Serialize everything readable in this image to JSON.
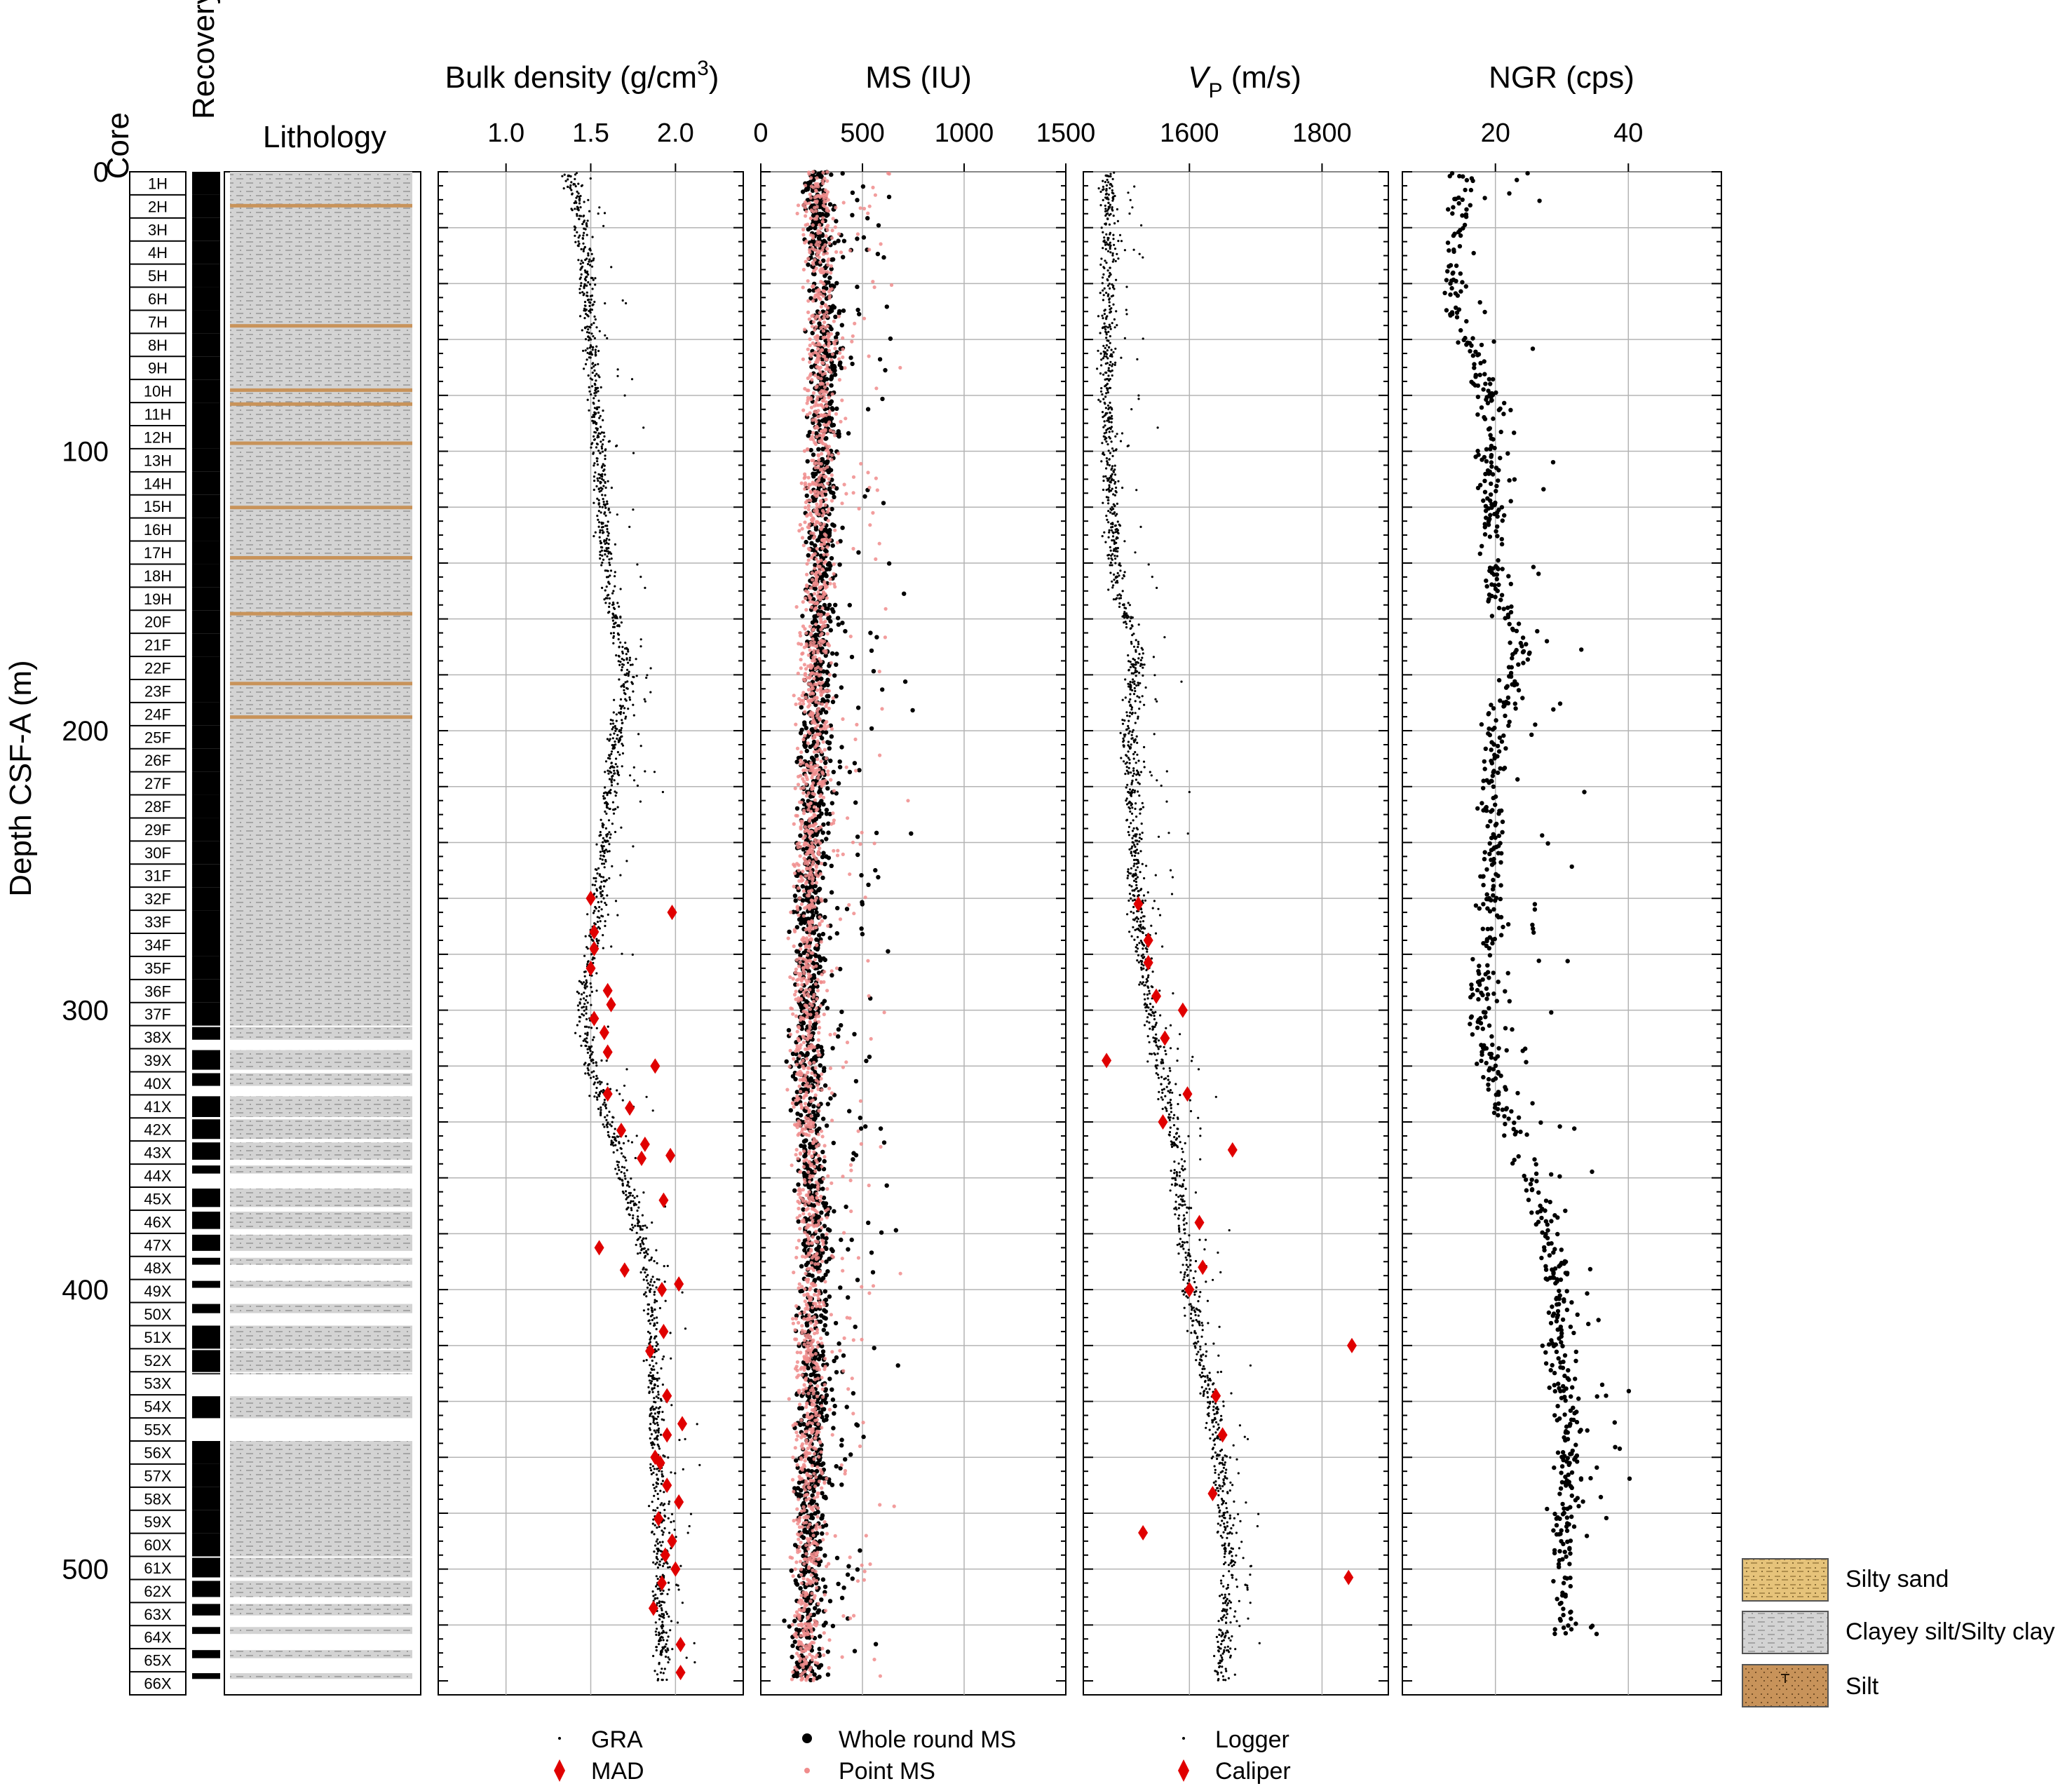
{
  "figure": {
    "y_axis_label": "Depth CSF-A (m)",
    "depth_ticks": [
      "0",
      "100",
      "200",
      "300",
      "400",
      "500"
    ],
    "column_headers": {
      "core": "Core",
      "recovery": "Recovery",
      "lithology": "Lithology"
    }
  },
  "colors": {
    "black": "#000000",
    "red": "#e00000",
    "pink": "#f08c8c",
    "grid": "#b4b4b4",
    "clay_fill": "#d3d3d3",
    "sand_fill": "#e6c37a",
    "silt_fill": "#c8935a"
  },
  "legend_lithology": [
    {
      "label": "Silty sand",
      "pattern": "silty-sand"
    },
    {
      "label": "Clayey silt/Silty clay",
      "pattern": "clayey-silt"
    },
    {
      "label": "Silt",
      "pattern": "silt"
    }
  ],
  "cores": [
    "1H",
    "2H",
    "3H",
    "4H",
    "5H",
    "6H",
    "7H",
    "8H",
    "9H",
    "10H",
    "11H",
    "12H",
    "13H",
    "14H",
    "15H",
    "16H",
    "17H",
    "18H",
    "19H",
    "20F",
    "21F",
    "22F",
    "23F",
    "24F",
    "25F",
    "26F",
    "27F",
    "28F",
    "29F",
    "30F",
    "31F",
    "32F",
    "33F",
    "34F",
    "35F",
    "36F",
    "37F",
    "38X",
    "39X",
    "40X",
    "41X",
    "42X",
    "43X",
    "44X",
    "45X",
    "46X",
    "47X",
    "48X",
    "49X",
    "50X",
    "51X",
    "52X",
    "53X",
    "54X",
    "55X",
    "56X",
    "57X",
    "58X",
    "59X",
    "60X",
    "61X",
    "62X",
    "63X",
    "64X",
    "65X",
    "66X"
  ],
  "chart_data": [
    {
      "type": "scatter",
      "title": "Bulk density (g/cm3)",
      "title_main": "Bulk density (g/cm",
      "title_sup": "3",
      "title_tail": ")",
      "xlim": [
        0.6,
        2.4
      ],
      "x_ticks": [
        "1.0",
        "1.5",
        "2.0"
      ],
      "ylim": [
        0,
        545
      ],
      "y_inverted": true,
      "legend": [
        "GRA",
        "MAD"
      ],
      "series": [
        {
          "name": "GRA",
          "marker": "small-dot",
          "profile": [
            [
              0,
              1.38
            ],
            [
              20,
              1.45
            ],
            [
              60,
              1.5
            ],
            [
              100,
              1.55
            ],
            [
              150,
              1.6
            ],
            [
              180,
              1.72
            ],
            [
              200,
              1.65
            ],
            [
              240,
              1.58
            ],
            [
              262,
              1.55
            ],
            [
              300,
              1.45
            ],
            [
              320,
              1.5
            ],
            [
              350,
              1.65
            ],
            [
              380,
              1.8
            ],
            [
              400,
              1.85
            ],
            [
              430,
              1.87
            ],
            [
              470,
              1.9
            ],
            [
              535,
              1.92
            ]
          ]
        },
        {
          "name": "MAD",
          "marker": "red-diamond",
          "points": [
            [
              260,
              1.5
            ],
            [
              265,
              1.98
            ],
            [
              272,
              1.52
            ],
            [
              278,
              1.52
            ],
            [
              285,
              1.5
            ],
            [
              293,
              1.6
            ],
            [
              298,
              1.62
            ],
            [
              303,
              1.52
            ],
            [
              308,
              1.58
            ],
            [
              315,
              1.6
            ],
            [
              320,
              1.88
            ],
            [
              330,
              1.6
            ],
            [
              335,
              1.73
            ],
            [
              343,
              1.68
            ],
            [
              348,
              1.82
            ],
            [
              353,
              1.8
            ],
            [
              352,
              1.97
            ],
            [
              368,
              1.93
            ],
            [
              385,
              1.55
            ],
            [
              393,
              1.7
            ],
            [
              400,
              1.92
            ],
            [
              398,
              2.02
            ],
            [
              415,
              1.93
            ],
            [
              422,
              1.85
            ],
            [
              438,
              1.95
            ],
            [
              448,
              2.04
            ],
            [
              452,
              1.95
            ],
            [
              460,
              1.88
            ],
            [
              462,
              1.91
            ],
            [
              470,
              1.95
            ],
            [
              476,
              2.02
            ],
            [
              482,
              1.9
            ],
            [
              490,
              1.98
            ],
            [
              495,
              1.94
            ],
            [
              500,
              2.0
            ],
            [
              505,
              1.92
            ],
            [
              514,
              1.87
            ],
            [
              527,
              2.03
            ],
            [
              537,
              2.03
            ]
          ]
        }
      ]
    },
    {
      "type": "scatter",
      "title": "MS (IU)",
      "xlim": [
        0,
        1500
      ],
      "x_ticks": [
        "0",
        "500",
        "1000",
        "1500"
      ],
      "ylim": [
        0,
        545
      ],
      "y_inverted": true,
      "legend": [
        "Whole round MS",
        "Point MS"
      ],
      "series": [
        {
          "name": "Whole round MS",
          "marker": "black-dot",
          "profile": [
            [
              0,
              280
            ],
            [
              60,
              320
            ],
            [
              120,
              300
            ],
            [
              200,
              280
            ],
            [
              262,
              240
            ],
            [
              320,
              230
            ],
            [
              380,
              260
            ],
            [
              420,
              260
            ],
            [
              480,
              250
            ],
            [
              535,
              220
            ]
          ]
        },
        {
          "name": "Point MS",
          "marker": "pink-dot",
          "profile": [
            [
              0,
              260
            ],
            [
              60,
              300
            ],
            [
              120,
              280
            ],
            [
              200,
              260
            ],
            [
              262,
              230
            ],
            [
              320,
              220
            ],
            [
              380,
              250
            ],
            [
              420,
              240
            ],
            [
              480,
              240
            ],
            [
              535,
              210
            ]
          ]
        }
      ]
    },
    {
      "type": "scatter",
      "title": "VP (m/s)",
      "title_main": "V",
      "title_sub": "P",
      "title_tail": " (m/s)",
      "xlim": [
        1440,
        1900
      ],
      "x_ticks": [
        "1600",
        "1800"
      ],
      "ylim": [
        0,
        545
      ],
      "y_inverted": true,
      "legend": [
        "Logger",
        "Caliper"
      ],
      "series": [
        {
          "name": "Logger",
          "marker": "small-dot",
          "profile": [
            [
              0,
              1480
            ],
            [
              80,
              1475
            ],
            [
              150,
              1490
            ],
            [
              170,
              1520
            ],
            [
              200,
              1510
            ],
            [
              260,
              1520
            ],
            [
              300,
              1540
            ],
            [
              350,
              1580
            ],
            [
              400,
              1600
            ],
            [
              450,
              1640
            ],
            [
              500,
              1660
            ],
            [
              535,
              1650
            ]
          ]
        },
        {
          "name": "Caliper",
          "marker": "red-diamond",
          "points": [
            [
              262,
              1523
            ],
            [
              275,
              1538
            ],
            [
              283,
              1538
            ],
            [
              295,
              1550
            ],
            [
              300,
              1590
            ],
            [
              310,
              1563
            ],
            [
              318,
              1475
            ],
            [
              330,
              1597
            ],
            [
              340,
              1560
            ],
            [
              350,
              1665
            ],
            [
              376,
              1615
            ],
            [
              392,
              1620
            ],
            [
              400,
              1600
            ],
            [
              420,
              1845
            ],
            [
              438,
              1640
            ],
            [
              452,
              1650
            ],
            [
              473,
              1635
            ],
            [
              487,
              1530
            ],
            [
              503,
              1840
            ]
          ]
        }
      ]
    },
    {
      "type": "scatter",
      "title": "NGR (cps)",
      "xlim": [
        6,
        54
      ],
      "x_ticks": [
        "20",
        "40"
      ],
      "ylim": [
        0,
        545
      ],
      "y_inverted": true,
      "series": [
        {
          "name": "NGR",
          "marker": "black-dot",
          "profile": [
            [
              0,
              15
            ],
            [
              50,
              14
            ],
            [
              80,
              19
            ],
            [
              150,
              20
            ],
            [
              170,
              24
            ],
            [
              200,
              20
            ],
            [
              260,
              19
            ],
            [
              300,
              18
            ],
            [
              330,
              20
            ],
            [
              350,
              24
            ],
            [
              380,
              28
            ],
            [
              400,
              30
            ],
            [
              420,
              29
            ],
            [
              450,
              31
            ],
            [
              500,
              30
            ],
            [
              535,
              31
            ]
          ]
        }
      ]
    }
  ]
}
